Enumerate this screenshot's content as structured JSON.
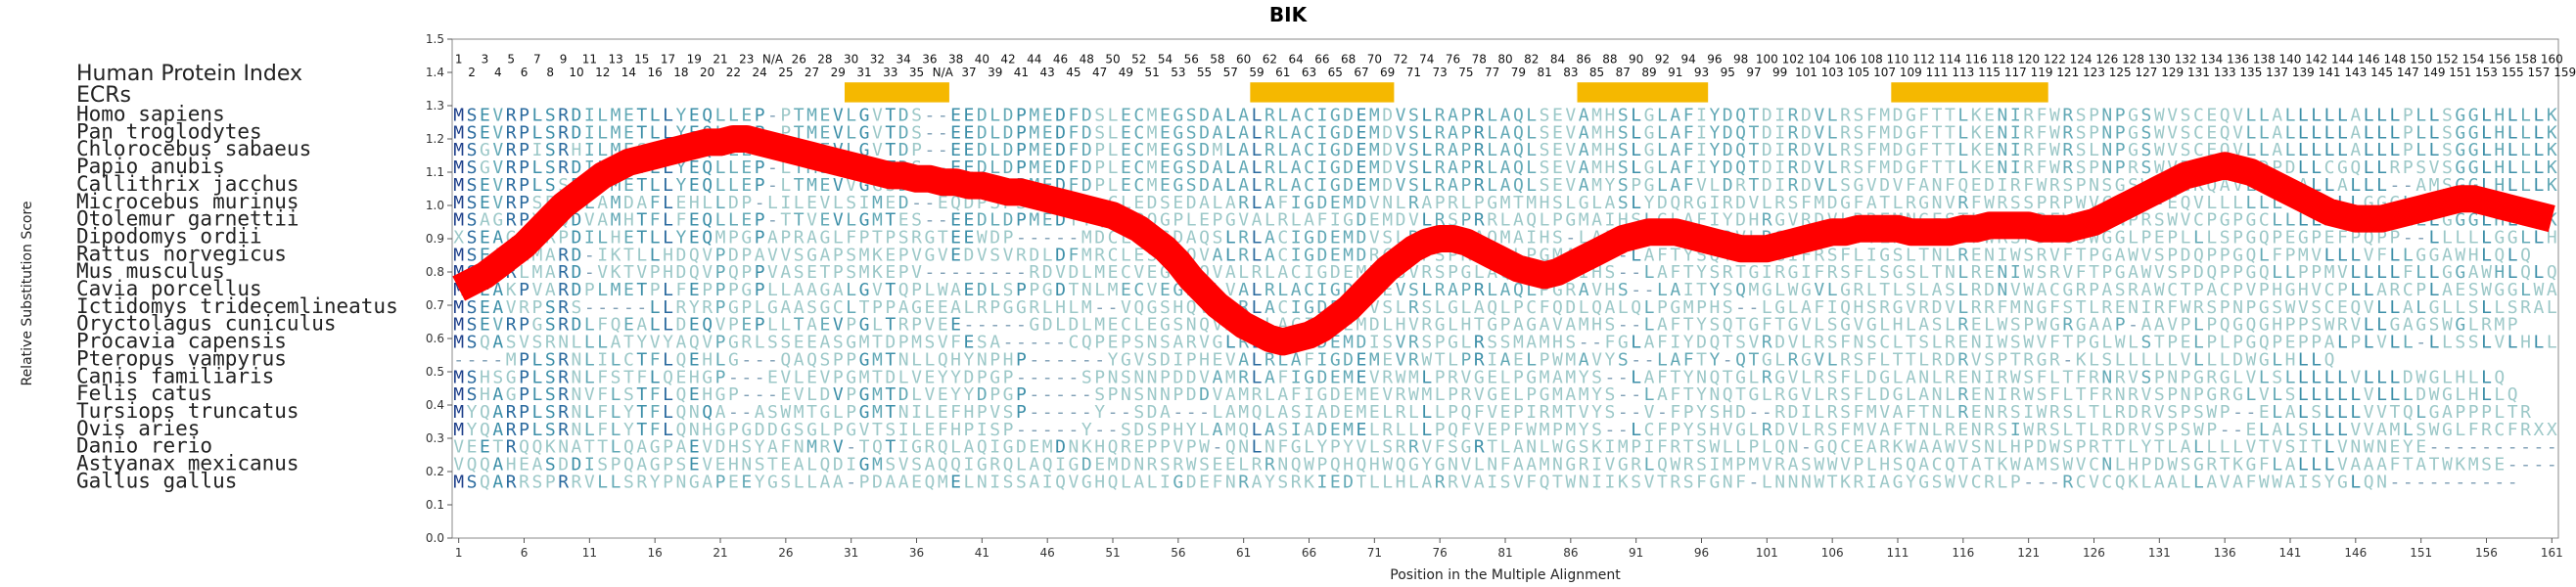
{
  "chart_data": {
    "type": "line",
    "title": "BIK",
    "xlabel": "Position in the Multiple Alignment",
    "ylabel": "Relative Substitution Score",
    "yticks": [
      "0.0",
      "0.1",
      "0.2",
      "0.3",
      "0.4",
      "0.5",
      "0.6",
      "0.7",
      "0.8",
      "0.9",
      "1.0",
      "1.1",
      "1.2",
      "1.3",
      "1.4",
      "1.5"
    ],
    "xticks": [
      "1",
      "6",
      "11",
      "16",
      "21",
      "26",
      "31",
      "36",
      "41",
      "46",
      "51",
      "56",
      "61",
      "66",
      "71",
      "76",
      "81",
      "86",
      "91",
      "96",
      "101",
      "106",
      "111",
      "116",
      "121",
      "126",
      "131",
      "136",
      "141",
      "146",
      "151",
      "156",
      "161"
    ],
    "ylim": [
      0,
      1.5
    ],
    "xlim": [
      0.5,
      161.5
    ],
    "hpi_label": "Human Protein Index",
    "ecr_label": "ECRs",
    "hpi_odd": [
      "1",
      "3",
      "5",
      "7",
      "9",
      "11",
      "13",
      "15",
      "17",
      "19",
      "21",
      "23",
      "N/A",
      "26",
      "28",
      "30",
      "32",
      "34",
      "36",
      "38",
      "40",
      "42",
      "44",
      "46",
      "48",
      "50",
      "52",
      "54",
      "56",
      "58",
      "60",
      "62",
      "64",
      "66",
      "68",
      "70",
      "72",
      "74",
      "76",
      "78",
      "80",
      "82",
      "84",
      "86",
      "88",
      "90",
      "92",
      "94",
      "96",
      "98",
      "100",
      "102",
      "104",
      "106",
      "108",
      "110",
      "112",
      "114",
      "116",
      "118",
      "120",
      "122",
      "124",
      "126",
      "128",
      "130",
      "132",
      "134",
      "136",
      "138",
      "140",
      "142",
      "144",
      "146",
      "148",
      "150",
      "152",
      "154",
      "156",
      "158",
      "160"
    ],
    "hpi_even": [
      "2",
      "4",
      "6",
      "8",
      "10",
      "12",
      "14",
      "16",
      "18",
      "20",
      "22",
      "24",
      "25",
      "27",
      "29",
      "31",
      "33",
      "35",
      "N/A",
      "37",
      "39",
      "41",
      "43",
      "45",
      "47",
      "49",
      "51",
      "53",
      "55",
      "57",
      "59",
      "61",
      "63",
      "65",
      "67",
      "69",
      "71",
      "73",
      "75",
      "77",
      "79",
      "81",
      "83",
      "85",
      "87",
      "89",
      "91",
      "93",
      "95",
      "97",
      "99",
      "101",
      "103",
      "105",
      "107",
      "109",
      "111",
      "113",
      "115",
      "117",
      "119",
      "121",
      "123",
      "125",
      "127",
      "129",
      "131",
      "133",
      "135",
      "137",
      "139",
      "141",
      "143",
      "145",
      "147",
      "149",
      "151",
      "153",
      "155",
      "157",
      "159"
    ],
    "ecr_regions": [
      [
        31,
        38
      ],
      [
        62,
        72
      ],
      [
        87,
        96
      ],
      [
        111,
        122
      ]
    ],
    "ecr_color": "#f5b800",
    "line_color": "#ff0000",
    "species": [
      "Homo sapiens",
      "Pan troglodytes",
      "Chlorocebus sabaeus",
      "Papio anubis",
      "Callithrix jacchus",
      "Microcebus murinus",
      "Otolemur garnettii",
      "Dipodomys ordii",
      "Rattus norvegicus",
      "Mus musculus",
      "Cavia porcellus",
      "Ictidomys tridecemlineatus",
      "Oryctolagus cuniculus",
      "Procavia capensis",
      "Pteropus vampyrus",
      "Canis familiaris",
      "Felis catus",
      "Tursiops truncatus",
      "Ovis aries",
      "Danio rerio",
      "Astyanax mexicanus",
      "Gallus gallus"
    ],
    "sequences": [
      "MSEVRPLSRDILMETLLYEQLLEP-PTMEVLGVTDS--EEDLDPMEDFDSLECMEGSDALALRLACIGDEMDVSLRAPRLAQLSEVAMHSLGLAFIYDQTDIRDVLRSFMDGFTTLKENIRFWRSPNPGSWVSCEQVLLALLLLLALLLPLLSGGLHLLLK",
      "MSEVRPLSRDILMETLLYEQLLEP-PTMEVLGVTDS--EEDLDPMEDFDSLECMEGSDALALRLACIGDEMDVSLRAPRLAQLSEVAMHSLGLAFIYDQTDIRDVLRSFMDGFTTLKENIRFWRSPNPGSWVSCEQVLLALLLLLALLLPLLSGGLHLLLK",
      "MSGVRPISRHILMESLLYEQLLEP-LTMEVLGVTDP--EEDLDPMEDFDPLECMEGSDMLALRLACIGDEMDVSLRAPRLAQLSEVAMHSLGLAFIYDQTDIRDVLRSFMDGFTTLKENIRFWRSLNPGSWVSCEQVLLALLLLLALLLPLLSGGLHLLLK",
      "MSGVRPLSRDILMETLLYEQLLEP-LTMEVLGVTDS--EEDLDPMEDFDPLECMEGSDALALRLACIGDEMDVSLRAPRLAQLSEVAMHSLGLAFIYDQTDIRDVLRSFMDGFTTLKENIRFWRSPNPRSWVRALEIPDPDLLCGQLLRPSVSGGLHLLLK",
      "MSEVRPLSSDITMETLLYEQLLEP-LTMEVVGGSDP--EEDLDPMEDFDPLECMEGSDALALRLACIGDEMDVSLRAPRLAQLSEVAMYSPGLAFVLDRTDIRDVLSGVDVFANFQEDIRFWRSPNSGSWVSCKQAVLALLALLALLL--AMSGGLHLLLK",
      "MSEVRPSPTDLAMDAFLEHLLDP-LILEVLSIMED--EQDPSPSG-----CLEDSEDALARLAFIGDEMDVNLRAPRLPGMTMHSLGLASLYDQRGIRDVLRSFMDGFATLRGNVRFWRSSPRPWVCPGP-EQVLLLLLL--VLLLGGGLHLLLK",
      "MSAGRPYAQDVAMHTFLFEQLLEP-TTVEVLGMTES--EEDLDPMEDTTQRCPQGPLEPGVALRLAFIGDEMDVLRSPRRLAQLPGMAIHSLGLAFIYDHRGVRDVLRRFMNGFSTLRNNVRFWRSPNPRSWVCPGPGCLLLLALLLLALLLGGGLHLLLK",
      "XSEAGSVRPDILHETLLYEQMPGPAPRAGLFPTPSRGTEEWDP-----MDCLEDSDAQSLRLACIGDEMDVSLRSPGLAQMAIHS-LAFTYQHCGIRDVLRSFMNGFTTLREIRVSFWRSPDPGSWGGLPEPLLLSPGQPEGPEFPQPP--LLLLLGGLLHLLLK",
      "MSEARLMARD-IKTLLHDQVPDPAVVSGAPSMKEPVGVEDVSVRDLDFMRCLESRNQVALRLACIGDEMDRCLEPSPRSVQLPGMAMH--LAFTYSQTGVRGIFRSFLIGSLTNLRENIWSRVFTPGAWVSPDQPPGQLFPMVLLLVFLLGGAWHLQLQ",
      "MSEARLMARD-VKTVPHDQVPQPPVASETPSMKEPV--------RDVDLMECVEGRNQVALRLACIGDEMDLSVRSPGLAQLPGMAIHS--LAFTYSRTGIRGIFRSFLSGSLTNLRENIWSRVFTPGAWVSPDQPPGQLLPPMVLLLLFLLGGAWHLQLQ",
      "MSEAKPVARDPLMETPLFEPPPGPLLAAGALGVTQPLWAEDLSPPGDTNLMECVEGSSLVALRLACIGDEMEVSLRAPRLAQLPGRAVHS--LAITYSQMGLWGVLGRLTLSLASLRDNVWACGRPASRAWCTPACPVPHGHVCPLLARCPLAESWGGLWA",
      "MSEAVRPSRS-----LLRYRPGPLGAASGCLTPPAGEEALRPGGRLHLM--VQGSHQVALRLACIGDEMDVSLRSLGLAQLPCFQDLQALQLPGMPHS--LGLAFIQHSRGVRDVLRRFMNGFSTLRENIRFWRSPNPGSWVSCEQVLLALGLLSLLSRALYRLQ",
      "MSEVRPGSRDLFQEALLDEQVPEPLLTAEVPGLTRPVEE-----GDLDLMECLEGSNQVALRLACIGDEMDLHVRGLHTGPAGAVAMHS--LAFTYSQTGFTGVLSGVGLHLASLRELWSPWGRGAAP-AAVPLPQGQGHPPSWRVLLGAGSWGLRMP",
      "MSQASVSRNLLLATYVYAQVPGRLSSEEASGMTDPMSVFESA-----CQPEPSNSARVGLRLACIGDEMDISVRSPGLRSSMAMHS--FGLAFIYDQTSVRDVLRSFNSCLTSLRENIWSWVFTPGLWLSTPELPLPGQPEPPALPLVLL-LLSSLVLHLLP",
      "----MPLSRNLILCTFLQEHLG---QAQSPPGMTNLLQHYNPHP------YGVSDIPHEVALRLAFIGDEMEVRWTLPRIAELPWMAVYS--LAFTY-QTGLRGVLRSFLTTLRDRVSPTRGR-KLSLLLLLVLLLDWGLHLLQ",
      "MSHSGPLSRNLFSTFLQEHGP---EVLEVPGMTDLVEYYDPGP-----SPNSNNPDDVAMRLAFIGDEMEVRWMLPRVGELPGMAMYS--LAFTYNQTGLRGVLRSFLDGLANLRENIRWSFLTFRNRVSPNPGRGLVLSLLLLLVLLLDWGLHLLQ",
      "MSHAGPLSRNVFLSTFLQEHGP---EVLDVPGMTDLVEYYDPGP-----SPNSNNPDDVAMRLAFIGDEMEVRWMLPRVGELPGMAMYS--LAFTYNQTGLRGVLRSFLDGLANLRENIRWSFLTFRNRVSPNPGRGLVLSLLLLLVLLLDWGLHLLQ",
      "MYQARPLSRNLFLYTFLQNQA--ASWMTGLPGMTNILEFHPVSP-----Y--SDA---LAMQLASIADEMELRLLLPQFVEPIRMTVYS--V-FPYSHD--RDILRSFMVAFTNLRENRSIWRSLTLRDRVSPSWP--ELALSLLLVVTQLGAPPPLTR",
      "MYQARPLSRNLFLYTFLQNHGPGDDGSGLPGVTSILEFHPISP-----Y--SDSPHYLAMQLASIADEMELRLLLPQFVEPFWMPMYS--LCFPYSHVGLRDVLRSFMVAFTNLRENRSIWRSLTLRDRVSPSWP--ELALSLLLVVAMLSWGLFRCFRXXX",
      "VEETRQQKNATTLQAGPAEVDHSYAFNMRV-TQTIGRQLAQIGDEMDNKHQREPPVPW-QNLNFGLYPYVLSRRVFSGRTLANLWGSKIMPIFRTSWLLPLQN-GQCEARKWAAWVSNLHPDWSPRTTLYTLALLLLVTVSITLVNWNEYE----------",
      "VQQAHEASDDISPQAGPSEVEHNSTEALQDIGMSVSAQQIGRQLAQIGDEMDNRSRWSEELRRNQWPQHQHWQGYGNVLNFAAMNGRIVGRLQWRSIMPMVRASWWVPLHSQACQTATKWAMSWVCNLHPDWSGRTKGFLALLLVAAAFTATWKMSE----------",
      "MSQARRSPRRVLLSRYPNGAPEEYGSLLAA-PDAAEQMELNISSAIQVGHQLALIGDEFNRAYSRKIEDTLLHLARRVAISVFQTWNIIKSVTRSFGNF-LNNNWTKRIAGYGSWVCRLP---RCVCQKLAALLAVAFWWAISYGLQN----------"
    ],
    "x": [
      1,
      2,
      3,
      4,
      5,
      6,
      7,
      8,
      9,
      10,
      11,
      12,
      13,
      14,
      15,
      16,
      17,
      18,
      19,
      20,
      21,
      22,
      23,
      24,
      25,
      26,
      27,
      28,
      29,
      30,
      31,
      32,
      33,
      34,
      35,
      36,
      37,
      38,
      39,
      40,
      41,
      42,
      43,
      44,
      45,
      46,
      47,
      48,
      49,
      50,
      51,
      52,
      53,
      54,
      55,
      56,
      57,
      58,
      59,
      60,
      61,
      62,
      63,
      64,
      65,
      66,
      67,
      68,
      69,
      70,
      71,
      72,
      73,
      74,
      75,
      76,
      77,
      78,
      79,
      80,
      81,
      82,
      83,
      84,
      85,
      86,
      87,
      88,
      89,
      90,
      91,
      92,
      93,
      94,
      95,
      96,
      97,
      98,
      99,
      100,
      101,
      102,
      103,
      104,
      105,
      106,
      107,
      108,
      109,
      110,
      111,
      112,
      113,
      114,
      115,
      116,
      117,
      118,
      119,
      120,
      121,
      122,
      123,
      124,
      125,
      126,
      127,
      128,
      129,
      130,
      131,
      132,
      133,
      134,
      135,
      136,
      137,
      138,
      139,
      140,
      141,
      142,
      143,
      144,
      145,
      146,
      147,
      148,
      149,
      150,
      151,
      152,
      153,
      154,
      155,
      156,
      157,
      158,
      159,
      160,
      161
    ],
    "y": [
      0.75,
      0.77,
      0.79,
      0.82,
      0.85,
      0.88,
      0.92,
      0.96,
      1.0,
      1.03,
      1.06,
      1.09,
      1.11,
      1.13,
      1.14,
      1.15,
      1.16,
      1.17,
      1.18,
      1.19,
      1.19,
      1.2,
      1.2,
      1.19,
      1.18,
      1.17,
      1.16,
      1.15,
      1.14,
      1.13,
      1.12,
      1.11,
      1.1,
      1.09,
      1.09,
      1.08,
      1.08,
      1.07,
      1.07,
      1.06,
      1.06,
      1.05,
      1.04,
      1.04,
      1.03,
      1.02,
      1.01,
      1.0,
      0.99,
      0.98,
      0.97,
      0.95,
      0.93,
      0.9,
      0.87,
      0.83,
      0.78,
      0.74,
      0.7,
      0.67,
      0.64,
      0.62,
      0.6,
      0.59,
      0.6,
      0.61,
      0.63,
      0.66,
      0.69,
      0.73,
      0.77,
      0.81,
      0.84,
      0.87,
      0.89,
      0.9,
      0.9,
      0.89,
      0.87,
      0.85,
      0.83,
      0.81,
      0.8,
      0.79,
      0.8,
      0.82,
      0.84,
      0.86,
      0.88,
      0.9,
      0.91,
      0.92,
      0.92,
      0.92,
      0.91,
      0.9,
      0.89,
      0.88,
      0.87,
      0.87,
      0.87,
      0.88,
      0.89,
      0.9,
      0.91,
      0.92,
      0.92,
      0.93,
      0.93,
      0.93,
      0.93,
      0.92,
      0.92,
      0.92,
      0.92,
      0.93,
      0.93,
      0.94,
      0.94,
      0.94,
      0.94,
      0.93,
      0.93,
      0.93,
      0.94,
      0.95,
      0.97,
      0.99,
      1.01,
      1.03,
      1.05,
      1.07,
      1.09,
      1.1,
      1.11,
      1.12,
      1.11,
      1.1,
      1.08,
      1.06,
      1.04,
      1.02,
      1.0,
      0.98,
      0.97,
      0.96,
      0.96,
      0.96,
      0.97,
      0.98,
      0.99,
      1.0,
      1.01,
      1.02,
      1.02,
      1.01,
      1.0,
      0.99,
      0.98,
      0.97,
      0.96
    ]
  }
}
